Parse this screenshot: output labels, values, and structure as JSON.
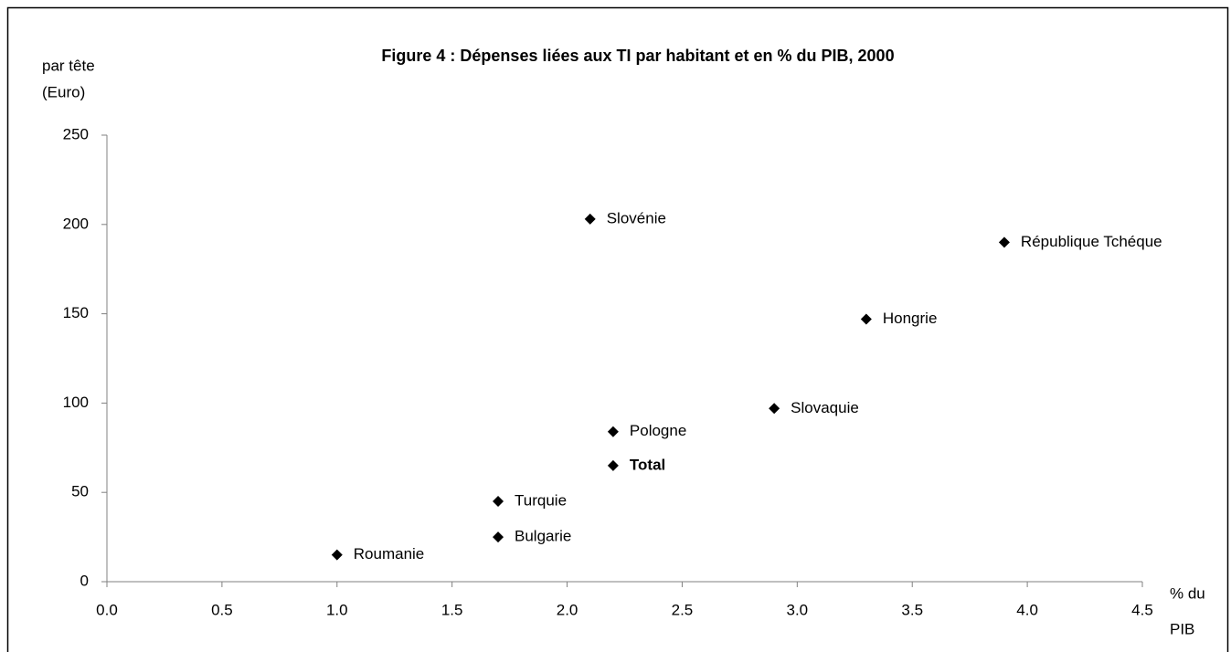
{
  "chart_data": {
    "type": "scatter",
    "title": "Figure 4 : Dépenses liées aux TI par habitant et en % du PIB, 2000",
    "y_label": [
      "par tête",
      "(Euro)"
    ],
    "x_label": [
      "% du",
      "PIB"
    ],
    "labels": [
      "Roumanie",
      "Bulgarie",
      "Turquie",
      "Total",
      "Pologne",
      "Slovaquie",
      "Hongrie",
      "Slovénie",
      "République Tchéque"
    ],
    "x": [
      1.0,
      1.7,
      1.7,
      2.2,
      2.2,
      2.9,
      3.3,
      2.1,
      3.9
    ],
    "values": [
      15,
      25,
      45,
      65,
      84,
      97,
      147,
      203,
      190
    ],
    "bold_labels": [
      false,
      false,
      false,
      true,
      false,
      false,
      false,
      false,
      false
    ],
    "color": "#000000",
    "xlim": [
      0,
      4.5
    ],
    "xticks": [
      {
        "value": 0,
        "label": "0.0"
      },
      0.5,
      {
        "value": 1,
        "label": "1.0"
      },
      1.5,
      {
        "value": 2,
        "label": "2.0"
      },
      2.5,
      {
        "value": 3,
        "label": "3.0"
      },
      3.5,
      {
        "value": 4,
        "label": "4.0"
      },
      4.5
    ],
    "ylim": [
      0,
      250
    ],
    "yticks": [
      0,
      50,
      100,
      150,
      200,
      250
    ],
    "grid": false
  }
}
